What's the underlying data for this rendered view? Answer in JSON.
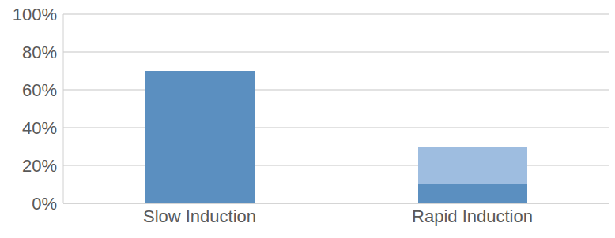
{
  "chart_data": {
    "type": "bar",
    "categories": [
      "Slow Induction",
      "Rapid Induction"
    ],
    "series": [
      {
        "color": "#5b8fc0",
        "values": [
          70,
          10
        ]
      },
      {
        "color": "#9ebde0",
        "values": [
          0,
          20
        ]
      }
    ],
    "stacked": true,
    "ylim": [
      0,
      100
    ],
    "yticks": [
      {
        "value": 0,
        "label": "0%"
      },
      {
        "value": 20,
        "label": "20%"
      },
      {
        "value": 40,
        "label": "40%"
      },
      {
        "value": 60,
        "label": "60%"
      },
      {
        "value": 80,
        "label": "80%"
      },
      {
        "value": 100,
        "label": "100%"
      }
    ],
    "grid": true
  }
}
